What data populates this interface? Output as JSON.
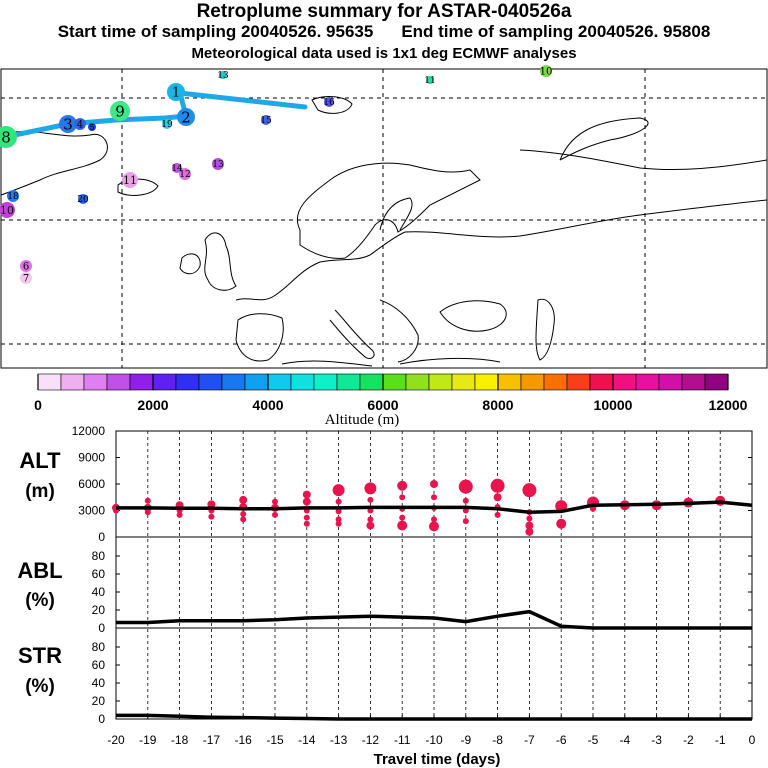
{
  "header": {
    "title": "Retroplume summary for ASTAR-040526a",
    "start_label": "Start time of sampling 20040526. 95635",
    "end_label": "End time of sampling 20040526. 95808",
    "met_label": "Meteorological data used is 1x1 deg ECMWF analyses"
  },
  "colors": {
    "plume_track": "#1ea8e6",
    "profile_dots": "#e8144e",
    "line": "#000000"
  },
  "map": {
    "markers": [
      {
        "label": "1",
        "color": "#19b5e6"
      },
      {
        "label": "2",
        "color": "#1e8cf0"
      },
      {
        "label": "3",
        "color": "#2a78e8"
      },
      {
        "label": "4",
        "color": "#3264e0"
      },
      {
        "label": "5",
        "color": "#2040e8"
      },
      {
        "label": "6",
        "color": "#e070e8"
      },
      {
        "label": "7",
        "color": "#f5c8f0"
      },
      {
        "label": "8",
        "color": "#2ee67a"
      },
      {
        "label": "9",
        "color": "#3ce887"
      },
      {
        "label": "10",
        "color": "#7cd84a"
      },
      {
        "label": "10",
        "color": "#c040d8"
      },
      {
        "label": "11",
        "color": "#e8a0e8"
      },
      {
        "label": "11",
        "color": "#22dca0"
      },
      {
        "label": "12",
        "color": "#e070d8"
      },
      {
        "label": "13",
        "color": "#1ec8c8"
      },
      {
        "label": "13",
        "color": "#b050e0"
      },
      {
        "label": "14",
        "color": "#c050e0"
      },
      {
        "label": "15",
        "color": "#4060f0"
      },
      {
        "label": "16",
        "color": "#5050f0"
      },
      {
        "label": "18",
        "color": "#2878f0"
      },
      {
        "label": "19",
        "color": "#30c8e0"
      },
      {
        "label": "20",
        "color": "#2060e8"
      }
    ]
  },
  "colorbar": {
    "title": "Altitude (m)",
    "tick_labels": [
      "0",
      "2000",
      "4000",
      "6000",
      "8000",
      "10000",
      "12000"
    ],
    "colors": [
      "#f8e0f8",
      "#f0b0f0",
      "#e080f0",
      "#c050e8",
      "#9020e8",
      "#6020f0",
      "#3030f0",
      "#2050f0",
      "#1878f0",
      "#10a0f0",
      "#10c8f0",
      "#10e0e0",
      "#10f0c8",
      "#10e898",
      "#18e060",
      "#58e018",
      "#90e020",
      "#c0e818",
      "#e8e818",
      "#f8f000",
      "#f8c000",
      "#f89800",
      "#f87000",
      "#f84018",
      "#f01050",
      "#f01080",
      "#e810a0",
      "#d010a8",
      "#b01090",
      "#900080"
    ]
  },
  "chart_data": [
    {
      "type": "line",
      "panel": "ALT",
      "ylabel": "ALT\n(m)",
      "ylabel_lines": [
        "ALT",
        "(m)"
      ],
      "ylim": [
        0,
        12000
      ],
      "yticks": [
        "0",
        "3000",
        "6000",
        "9000",
        "12000"
      ],
      "x": [
        -20,
        -19,
        -18,
        -17,
        -16,
        -15,
        -14,
        -13,
        -12,
        -11,
        -10,
        -9,
        -8,
        -7,
        -6,
        -5,
        -4,
        -3,
        -2,
        -1,
        0
      ],
      "series": [
        {
          "name": "mean altitude",
          "values": [
            3300,
            3300,
            3250,
            3250,
            3200,
            3200,
            3300,
            3300,
            3350,
            3350,
            3350,
            3350,
            3200,
            2800,
            2900,
            3600,
            3650,
            3700,
            3800,
            3950,
            3600
          ]
        }
      ],
      "scatter": [
        {
          "x": -20,
          "y": 3300,
          "r": 4
        },
        {
          "x": -20,
          "y": 3000,
          "r": 3
        },
        {
          "x": -19,
          "y": 4100,
          "r": 3
        },
        {
          "x": -19,
          "y": 3300,
          "r": 4
        },
        {
          "x": -19,
          "y": 2800,
          "r": 3
        },
        {
          "x": -18,
          "y": 3600,
          "r": 4
        },
        {
          "x": -18,
          "y": 3000,
          "r": 3
        },
        {
          "x": -18,
          "y": 2500,
          "r": 3
        },
        {
          "x": -17,
          "y": 3700,
          "r": 4
        },
        {
          "x": -17,
          "y": 3000,
          "r": 3
        },
        {
          "x": -17,
          "y": 2300,
          "r": 3
        },
        {
          "x": -16,
          "y": 4200,
          "r": 4
        },
        {
          "x": -16,
          "y": 3400,
          "r": 4
        },
        {
          "x": -16,
          "y": 2600,
          "r": 3
        },
        {
          "x": -16,
          "y": 2000,
          "r": 3
        },
        {
          "x": -15,
          "y": 4000,
          "r": 3
        },
        {
          "x": -15,
          "y": 3300,
          "r": 4
        },
        {
          "x": -15,
          "y": 2500,
          "r": 3
        },
        {
          "x": -14,
          "y": 4800,
          "r": 4
        },
        {
          "x": -14,
          "y": 4000,
          "r": 4
        },
        {
          "x": -14,
          "y": 3000,
          "r": 3
        },
        {
          "x": -14,
          "y": 2200,
          "r": 3
        },
        {
          "x": -14,
          "y": 1500,
          "r": 3
        },
        {
          "x": -13,
          "y": 5300,
          "r": 6
        },
        {
          "x": -13,
          "y": 4000,
          "r": 3
        },
        {
          "x": -13,
          "y": 2900,
          "r": 3
        },
        {
          "x": -13,
          "y": 2000,
          "r": 3
        },
        {
          "x": -13,
          "y": 1500,
          "r": 3
        },
        {
          "x": -12,
          "y": 5500,
          "r": 6
        },
        {
          "x": -12,
          "y": 4200,
          "r": 3
        },
        {
          "x": -12,
          "y": 3000,
          "r": 3
        },
        {
          "x": -12,
          "y": 2000,
          "r": 3
        },
        {
          "x": -12,
          "y": 1300,
          "r": 4
        },
        {
          "x": -11,
          "y": 5800,
          "r": 5
        },
        {
          "x": -11,
          "y": 4500,
          "r": 3
        },
        {
          "x": -11,
          "y": 3200,
          "r": 3
        },
        {
          "x": -11,
          "y": 2200,
          "r": 3
        },
        {
          "x": -11,
          "y": 1300,
          "r": 5
        },
        {
          "x": -10,
          "y": 6000,
          "r": 4
        },
        {
          "x": -10,
          "y": 4500,
          "r": 3
        },
        {
          "x": -10,
          "y": 3300,
          "r": 3
        },
        {
          "x": -10,
          "y": 2000,
          "r": 3
        },
        {
          "x": -10,
          "y": 1200,
          "r": 5
        },
        {
          "x": -9,
          "y": 5700,
          "r": 7
        },
        {
          "x": -9,
          "y": 4100,
          "r": 3
        },
        {
          "x": -9,
          "y": 3000,
          "r": 3
        },
        {
          "x": -9,
          "y": 1800,
          "r": 3
        },
        {
          "x": -8,
          "y": 5800,
          "r": 7
        },
        {
          "x": -8,
          "y": 4500,
          "r": 4
        },
        {
          "x": -8,
          "y": 3400,
          "r": 3
        },
        {
          "x": -8,
          "y": 2500,
          "r": 3
        },
        {
          "x": -7,
          "y": 5300,
          "r": 7
        },
        {
          "x": -7,
          "y": 2800,
          "r": 3
        },
        {
          "x": -7,
          "y": 2100,
          "r": 3
        },
        {
          "x": -7,
          "y": 1300,
          "r": 4
        },
        {
          "x": -7,
          "y": 600,
          "r": 4
        },
        {
          "x": -6,
          "y": 3500,
          "r": 6
        },
        {
          "x": -6,
          "y": 1500,
          "r": 5
        },
        {
          "x": -5,
          "y": 3900,
          "r": 6
        },
        {
          "x": -5,
          "y": 3200,
          "r": 3
        },
        {
          "x": -4,
          "y": 3600,
          "r": 5
        },
        {
          "x": -3,
          "y": 3600,
          "r": 5
        },
        {
          "x": -2,
          "y": 3900,
          "r": 5
        },
        {
          "x": -1,
          "y": 4100,
          "r": 5
        }
      ]
    },
    {
      "type": "line",
      "panel": "ABL",
      "ylabel": "ABL\n(%)",
      "ylabel_lines": [
        "ABL",
        "(%)"
      ],
      "ylim": [
        0,
        100
      ],
      "yticks": [
        "0",
        "20",
        "40",
        "60",
        "80"
      ],
      "x": [
        -20,
        -19,
        -18,
        -17,
        -16,
        -15,
        -14,
        -13,
        -12,
        -11,
        -10,
        -9,
        -8,
        -7,
        -6,
        -5,
        -4,
        -3,
        -2,
        -1,
        0
      ],
      "series": [
        {
          "name": "ABL fraction",
          "values": [
            6,
            6,
            8,
            8,
            8,
            9,
            11,
            12,
            13,
            12,
            11,
            7,
            13,
            18,
            2,
            0,
            0,
            0,
            0,
            0,
            0
          ]
        }
      ]
    },
    {
      "type": "line",
      "panel": "STR",
      "ylabel": "STR\n(%)",
      "ylabel_lines": [
        "STR",
        "(%)"
      ],
      "ylim": [
        0,
        100
      ],
      "yticks": [
        "0",
        "20",
        "40",
        "60",
        "80"
      ],
      "x": [
        -20,
        -19,
        -18,
        -17,
        -16,
        -15,
        -14,
        -13,
        -12,
        -11,
        -10,
        -9,
        -8,
        -7,
        -6,
        -5,
        -4,
        -3,
        -2,
        -1,
        0
      ],
      "series": [
        {
          "name": "stratospheric fraction",
          "values": [
            4,
            4,
            3,
            2,
            1.5,
            1,
            0.5,
            0,
            0,
            0,
            0,
            0,
            0,
            0,
            0,
            0,
            0,
            0,
            0,
            0,
            0
          ]
        }
      ],
      "xticks": [
        "-20",
        "-19",
        "-18",
        "-17",
        "-16",
        "-15",
        "-14",
        "-13",
        "-12",
        "-11",
        "-10",
        "-9",
        "-8",
        "-7",
        "-6",
        "-5",
        "-4",
        "-3",
        "-2",
        "-1",
        "0"
      ],
      "xlabel": "Travel time (days)"
    }
  ]
}
